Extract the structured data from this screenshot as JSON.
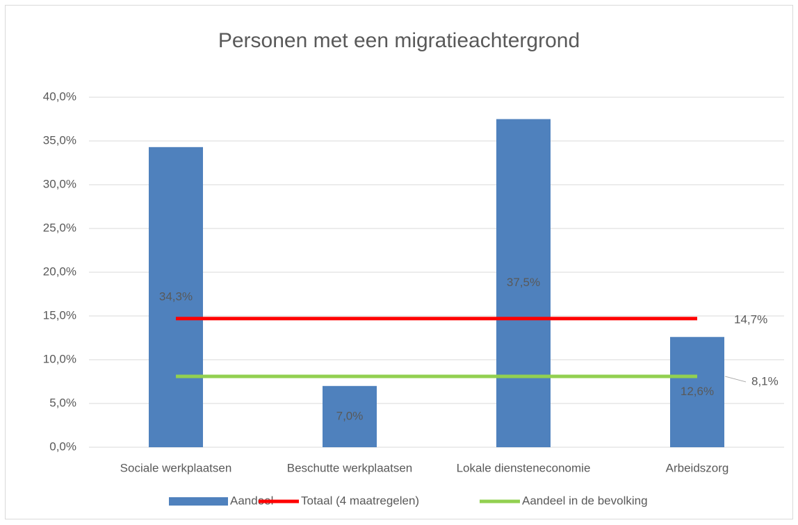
{
  "chart_data": {
    "type": "bar",
    "title": "Personen met een migratieachtergrond",
    "categories": [
      "Sociale werkplaatsen",
      "Beschutte werkplaatsen",
      "Lokale diensteneconomie",
      "Arbeidszorg"
    ],
    "series": [
      {
        "name": "Aandeel",
        "type": "bar",
        "color": "#4f81bd",
        "values": [
          34.3,
          7.0,
          37.5,
          12.6
        ],
        "value_labels": [
          "34,3%",
          "7,0%",
          "37,5%",
          "12,6%"
        ]
      },
      {
        "name": "Totaal (4 maatregelen)",
        "type": "line",
        "color": "#ff0000",
        "values": [
          14.7,
          14.7,
          14.7,
          14.7
        ],
        "value_labels": [
          null,
          null,
          null,
          "14,7%"
        ]
      },
      {
        "name": "Aandeel in de bevolking",
        "type": "line",
        "color": "#92d050",
        "values": [
          8.1,
          8.1,
          8.1,
          8.1
        ],
        "value_labels": [
          null,
          null,
          null,
          "8,1%"
        ]
      }
    ],
    "ylim": [
      0,
      40
    ],
    "yticks": [
      {
        "value": 0,
        "label": "0,0%"
      },
      {
        "value": 5,
        "label": "5,0%"
      },
      {
        "value": 10,
        "label": "10,0%"
      },
      {
        "value": 15,
        "label": "15,0%"
      },
      {
        "value": 20,
        "label": "20,0%"
      },
      {
        "value": 25,
        "label": "25,0%"
      },
      {
        "value": 30,
        "label": "30,0%"
      },
      {
        "value": 35,
        "label": "35,0%"
      },
      {
        "value": 40,
        "label": "40,0%"
      }
    ],
    "grid": true,
    "legend": "bottom"
  }
}
